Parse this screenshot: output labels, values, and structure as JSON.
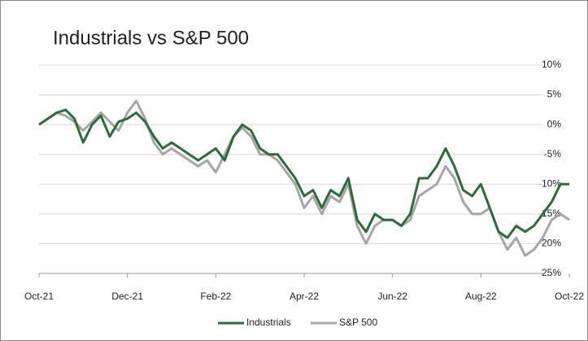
{
  "chart_data": {
    "type": "line",
    "title": "Industrials vs S&P 500",
    "categories": [
      "Oct-21",
      null,
      null,
      null,
      null,
      null,
      null,
      null,
      null,
      null,
      "Dec-21",
      null,
      null,
      null,
      null,
      null,
      null,
      null,
      null,
      null,
      "Feb-22",
      null,
      null,
      null,
      null,
      null,
      null,
      null,
      null,
      null,
      "Apr-22",
      null,
      null,
      null,
      null,
      null,
      null,
      null,
      null,
      null,
      "Jun-22",
      null,
      null,
      null,
      null,
      null,
      null,
      null,
      null,
      null,
      "Aug-22",
      null,
      null,
      null,
      null,
      null,
      null,
      null,
      null,
      null,
      "Oct-22"
    ],
    "series": [
      {
        "name": "Industrials",
        "color": "#2e6b3b",
        "values": [
          0,
          1,
          2,
          2.5,
          1,
          -3,
          0,
          1.5,
          -2,
          0.5,
          1,
          2,
          0.5,
          -2,
          -4,
          -3,
          -4,
          -5,
          -6,
          -5,
          -4,
          -6,
          -2,
          0,
          -1,
          -4,
          -5,
          -5,
          -7,
          -9,
          -12,
          -11,
          -14,
          -11,
          -12,
          -9,
          -16,
          -18,
          -15,
          -16,
          -16,
          -17,
          -15,
          -9,
          -9,
          -7,
          -4,
          -7,
          -11,
          -12,
          -10,
          -14,
          -18,
          -19,
          -17,
          -18,
          -17,
          -15,
          -13,
          -10,
          -10
        ]
      },
      {
        "name": "S&P 500",
        "color": "#a6a6a6",
        "values": [
          0,
          1,
          2,
          1.5,
          0.5,
          -1,
          0.5,
          2,
          0.5,
          -1,
          2,
          4,
          1,
          -3,
          -5,
          -4,
          -5,
          -6,
          -7,
          -6,
          -8,
          -5,
          -2,
          -0.5,
          -2,
          -5,
          -5,
          -6,
          -8,
          -10,
          -14,
          -12,
          -15,
          -12,
          -13,
          -10,
          -17,
          -20,
          -17,
          -16,
          -16,
          -17,
          -16,
          -12,
          -11,
          -10,
          -7,
          -9,
          -13,
          -15,
          -15,
          -14,
          -18,
          -21,
          -19,
          -22,
          -21,
          -19,
          -16,
          -15,
          -16
        ]
      }
    ],
    "ylim": [
      -25,
      10
    ],
    "yticks": [
      {
        "value": -25,
        "label": "-25%"
      },
      {
        "value": -20,
        "label": "-20%"
      },
      {
        "value": -15,
        "label": "-15%"
      },
      {
        "value": -10,
        "label": "-10%"
      },
      {
        "value": -5,
        "label": "-5%"
      },
      {
        "value": 0,
        "label": "0%"
      },
      {
        "value": 5,
        "label": "5%"
      },
      {
        "value": 10,
        "label": "10%"
      }
    ],
    "grid": true,
    "legend": "bottom"
  }
}
